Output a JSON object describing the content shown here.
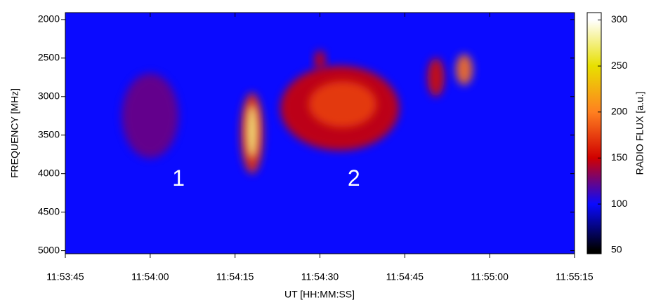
{
  "chart_data": {
    "type": "spectrogram",
    "x_label": "UT [HH:MM:SS]",
    "y_label": "FREQUENCY [MHz]",
    "colorbar_label": "RADIO FLUX [a.u.]",
    "xlim": [
      "11:53:45",
      "11:55:15"
    ],
    "xticks": [
      "11:53:45",
      "11:54:00",
      "11:54:15",
      "11:54:30",
      "11:54:45",
      "11:55:00",
      "11:55:15"
    ],
    "ylim": [
      5040,
      1910
    ],
    "yticks": [
      2000,
      2500,
      3000,
      3500,
      4000,
      4500,
      5000
    ],
    "y_reversed": true,
    "clim": [
      46,
      308
    ],
    "cticks": [
      50,
      100,
      150,
      200,
      250,
      300
    ],
    "colormap": [
      "#000000",
      "#0a0aff",
      "#d00000",
      "#ff8020",
      "#e8e000",
      "#ffffff"
    ],
    "background_flux": 100,
    "bursts": [
      {
        "time": [
          "11:53:55",
          "11:54:05"
        ],
        "frequency": [
          2700,
          3800
        ],
        "flux": 125
      },
      {
        "time": [
          "11:54:23",
          "11:54:44"
        ],
        "frequency": [
          2600,
          3700
        ],
        "flux": 150
      },
      {
        "time": [
          "11:54:28",
          "11:54:40"
        ],
        "frequency": [
          2800,
          3400
        ],
        "flux": 175
      },
      {
        "time": [
          "11:54:29",
          "11:54:31"
        ],
        "frequency": [
          2400,
          2650
        ],
        "flux": 150
      },
      {
        "time": [
          "11:54:49",
          "11:54:52"
        ],
        "frequency": [
          2500,
          3000
        ],
        "flux": 155
      },
      {
        "time": [
          "11:54:54",
          "11:54:57"
        ],
        "frequency": [
          2450,
          2850
        ],
        "flux": 195
      },
      {
        "time": [
          "11:54:16",
          "11:54:20"
        ],
        "frequency": [
          2950,
          4000
        ],
        "flux": 170
      },
      {
        "time": [
          "11:54:17",
          "11:54:19"
        ],
        "frequency": [
          3100,
          3800
        ],
        "flux": 275
      }
    ],
    "annotations": [
      {
        "text": "1",
        "time": "11:54:05",
        "frequency": 4080
      },
      {
        "text": "2",
        "time": "11:54:36",
        "frequency": 4080
      }
    ]
  }
}
